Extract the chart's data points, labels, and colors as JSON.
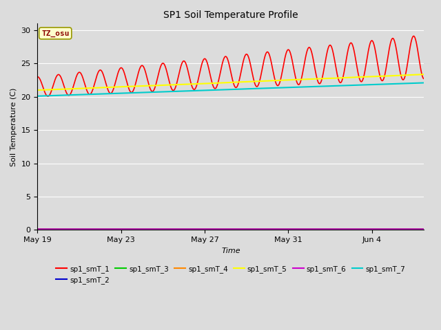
{
  "title": "SP1 Soil Temperature Profile",
  "xlabel": "Time",
  "ylabel": "Soil Temperature (C)",
  "background_color": "#dcdcdc",
  "plot_bg_color": "#dcdcdc",
  "annotation_text": "TZ_osu",
  "annotation_color": "#8b0000",
  "annotation_bg": "#ffffcc",
  "annotation_border": "#999900",
  "ylim": [
    0,
    31
  ],
  "yticks": [
    0,
    5,
    10,
    15,
    20,
    25,
    30
  ],
  "n_days": 18.5,
  "series": {
    "sp1_smT_1": {
      "color": "#ff0000",
      "linewidth": 1.2
    },
    "sp1_smT_2": {
      "color": "#0000cc",
      "linewidth": 1.2
    },
    "sp1_smT_3": {
      "color": "#00cc00",
      "linewidth": 1.2
    },
    "sp1_smT_4": {
      "color": "#ff8800",
      "linewidth": 1.2
    },
    "sp1_smT_5": {
      "color": "#ffff00",
      "linewidth": 1.5
    },
    "sp1_smT_6": {
      "color": "#cc00cc",
      "linewidth": 1.2
    },
    "sp1_smT_7": {
      "color": "#00cccc",
      "linewidth": 1.5
    }
  },
  "legend_order": [
    "sp1_smT_1",
    "sp1_smT_2",
    "sp1_smT_3",
    "sp1_smT_4",
    "sp1_smT_5",
    "sp1_smT_6",
    "sp1_smT_7"
  ],
  "xtick_labels": [
    "May 19",
    "May 23",
    "May 27",
    "May 31",
    "Jun 4"
  ],
  "xtick_positions": [
    0,
    4,
    8,
    12,
    16
  ]
}
